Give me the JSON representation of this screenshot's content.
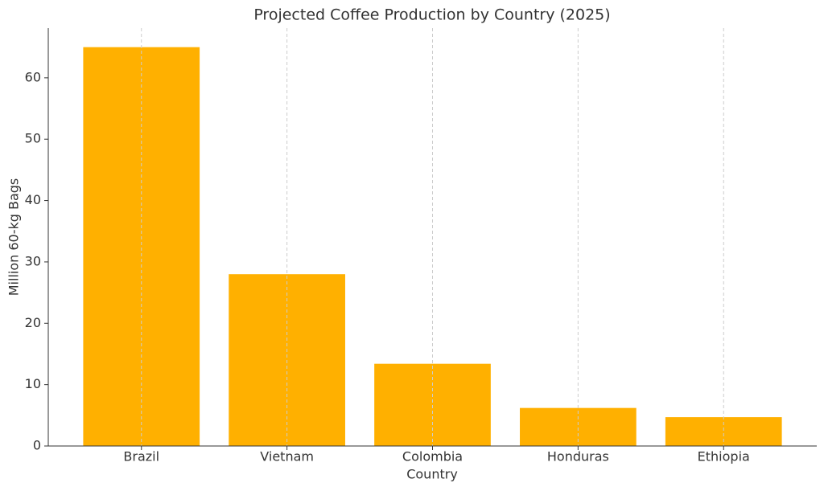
{
  "chart_data": {
    "type": "bar",
    "title": "Projected Coffee Production by Country (2025)",
    "x_label": "Country",
    "y_label": "Million 60-kg Bags",
    "categories": [
      "Brazil",
      "Vietnam",
      "Colombia",
      "Honduras",
      "Ethiopia"
    ],
    "values": [
      65,
      28,
      13.4,
      6.2,
      4.7
    ],
    "color": "#ffb000",
    "ylim": [
      0,
      68.1
    ],
    "yticks": [
      0,
      10,
      20,
      30,
      40,
      50,
      60
    ],
    "grid": "x"
  }
}
